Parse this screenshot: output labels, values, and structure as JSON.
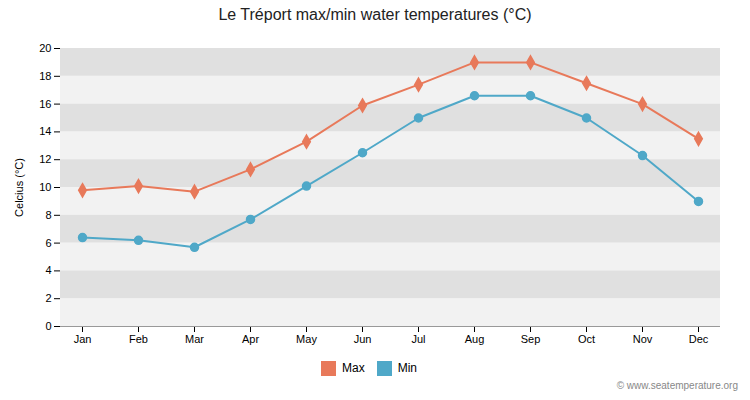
{
  "chart_data": {
    "type": "line",
    "title": "Le Tréport max/min water temperatures (°C)",
    "ylabel": "Celcius (°C)",
    "categories": [
      "Jan",
      "Feb",
      "Mar",
      "Apr",
      "May",
      "Jun",
      "Jul",
      "Aug",
      "Sep",
      "Oct",
      "Nov",
      "Dec"
    ],
    "series": [
      {
        "name": "Max",
        "color": "#e8795a",
        "marker": "diamond",
        "line_style": "solid",
        "values": [
          9.8,
          10.1,
          9.7,
          11.3,
          13.3,
          15.9,
          17.4,
          19.0,
          19.0,
          17.5,
          16.0,
          13.5
        ]
      },
      {
        "name": "Min",
        "color": "#4fa8c8",
        "marker": "circle",
        "line_style": "solid",
        "values": [
          6.4,
          6.2,
          5.7,
          7.7,
          10.1,
          12.5,
          15.0,
          16.6,
          16.6,
          15.0,
          12.3,
          9.0
        ]
      }
    ],
    "ylim": [
      0,
      20
    ],
    "yticks": [
      0,
      2,
      4,
      6,
      8,
      10,
      12,
      14,
      16,
      18,
      20
    ],
    "grid": true,
    "legend": "bottom",
    "annotations": [
      "© www.seatemperature.org"
    ]
  }
}
